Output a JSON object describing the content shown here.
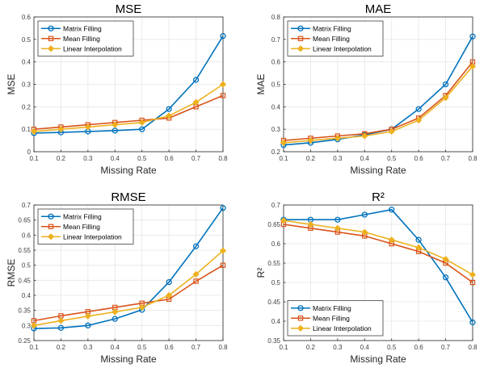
{
  "chart_data": [
    {
      "type": "line",
      "title": "MSE",
      "xlabel": "Missing Rate",
      "ylabel": "MSE",
      "x": [
        0.1,
        0.2,
        0.3,
        0.4,
        0.5,
        0.6,
        0.7,
        0.8
      ],
      "xlim": [
        0.1,
        0.8
      ],
      "ylim": [
        0,
        0.6
      ],
      "xticks": [
        "0.1",
        "0.2",
        "0.3",
        "0.4",
        "0.5",
        "0.6",
        "0.7",
        "0.8"
      ],
      "yticks": [
        "0",
        "0.1",
        "0.2",
        "0.3",
        "0.4",
        "0.5",
        "0.6"
      ],
      "ytick_values": [
        0,
        0.1,
        0.2,
        0.3,
        0.4,
        0.5,
        0.6
      ],
      "grid": true,
      "legend": "top-left",
      "series": [
        {
          "name": "Matrix Filling",
          "color": "#0072BD",
          "marker": "circle",
          "values": [
            0.083,
            0.086,
            0.09,
            0.094,
            0.1,
            0.19,
            0.32,
            0.515
          ]
        },
        {
          "name": "Mean Filling",
          "color": "#D95319",
          "marker": "square",
          "values": [
            0.1,
            0.11,
            0.12,
            0.13,
            0.14,
            0.15,
            0.2,
            0.25
          ]
        },
        {
          "name": "Linear Interpolation",
          "color": "#EDB120",
          "marker": "diamond",
          "values": [
            0.09,
            0.1,
            0.11,
            0.12,
            0.13,
            0.16,
            0.22,
            0.3
          ]
        }
      ]
    },
    {
      "type": "line",
      "title": "MAE",
      "xlabel": "Missing Rate",
      "ylabel": "MAE",
      "x": [
        0.1,
        0.2,
        0.3,
        0.4,
        0.5,
        0.6,
        0.7,
        0.8
      ],
      "xlim": [
        0.1,
        0.8
      ],
      "ylim": [
        0.2,
        0.8
      ],
      "xticks": [
        "0.1",
        "0.2",
        "0.3",
        "0.4",
        "0.5",
        "0.6",
        "0.7",
        "0.8"
      ],
      "yticks": [
        "0.2",
        "0.3",
        "0.4",
        "0.5",
        "0.6",
        "0.7",
        "0.8"
      ],
      "ytick_values": [
        0.2,
        0.3,
        0.4,
        0.5,
        0.6,
        0.7,
        0.8
      ],
      "grid": true,
      "legend": "top-left",
      "series": [
        {
          "name": "Matrix Filling",
          "color": "#0072BD",
          "marker": "circle",
          "values": [
            0.23,
            0.24,
            0.255,
            0.275,
            0.3,
            0.39,
            0.5,
            0.713
          ]
        },
        {
          "name": "Mean Filling",
          "color": "#D95319",
          "marker": "square",
          "values": [
            0.25,
            0.26,
            0.27,
            0.28,
            0.3,
            0.35,
            0.45,
            0.6
          ]
        },
        {
          "name": "Linear Interpolation",
          "color": "#EDB120",
          "marker": "diamond",
          "values": [
            0.24,
            0.25,
            0.26,
            0.27,
            0.29,
            0.34,
            0.44,
            0.58
          ]
        }
      ]
    },
    {
      "type": "line",
      "title": "RMSE",
      "xlabel": "Missing Rate",
      "ylabel": "RMSE",
      "x": [
        0.1,
        0.2,
        0.3,
        0.4,
        0.5,
        0.6,
        0.7,
        0.8
      ],
      "xlim": [
        0.1,
        0.8
      ],
      "ylim": [
        0.25,
        0.7
      ],
      "xticks": [
        "0.1",
        "0.2",
        "0.3",
        "0.4",
        "0.5",
        "0.6",
        "0.7",
        "0.8"
      ],
      "yticks": [
        "0.25",
        "0.3",
        "0.35",
        "0.4",
        "0.45",
        "0.5",
        "0.55",
        "0.6",
        "0.65",
        "0.7"
      ],
      "ytick_values": [
        0.25,
        0.3,
        0.35,
        0.4,
        0.45,
        0.5,
        0.55,
        0.6,
        0.65,
        0.7
      ],
      "grid": true,
      "legend": "top-left",
      "series": [
        {
          "name": "Matrix Filling",
          "color": "#0072BD",
          "marker": "circle",
          "values": [
            0.29,
            0.292,
            0.3,
            0.322,
            0.352,
            0.444,
            0.563,
            0.69
          ]
        },
        {
          "name": "Mean Filling",
          "color": "#D95319",
          "marker": "square",
          "values": [
            0.316,
            0.332,
            0.346,
            0.36,
            0.374,
            0.387,
            0.447,
            0.5
          ]
        },
        {
          "name": "Linear Interpolation",
          "color": "#EDB120",
          "marker": "diamond",
          "values": [
            0.3,
            0.316,
            0.331,
            0.345,
            0.36,
            0.4,
            0.47,
            0.548
          ]
        }
      ]
    },
    {
      "type": "line",
      "title": "R²",
      "xlabel": "Missing Rate",
      "ylabel": "R²",
      "x": [
        0.1,
        0.2,
        0.3,
        0.4,
        0.5,
        0.6,
        0.7,
        0.8
      ],
      "xlim": [
        0.1,
        0.8
      ],
      "ylim": [
        0.35,
        0.7
      ],
      "xticks": [
        "0.1",
        "0.2",
        "0.3",
        "0.4",
        "0.5",
        "0.6",
        "0.7",
        "0.8"
      ],
      "yticks": [
        "0.35",
        "0.4",
        "0.45",
        "0.5",
        "0.55",
        "0.6",
        "0.65",
        "0.7"
      ],
      "ytick_values": [
        0.35,
        0.4,
        0.45,
        0.5,
        0.55,
        0.6,
        0.65,
        0.7
      ],
      "grid": true,
      "legend": "bottom-left",
      "series": [
        {
          "name": "Matrix Filling",
          "color": "#0072BD",
          "marker": "circle",
          "values": [
            0.662,
            0.662,
            0.662,
            0.675,
            0.688,
            0.61,
            0.513,
            0.397
          ]
        },
        {
          "name": "Mean Filling",
          "color": "#D95319",
          "marker": "square",
          "values": [
            0.65,
            0.64,
            0.63,
            0.62,
            0.6,
            0.58,
            0.55,
            0.5
          ]
        },
        {
          "name": "Linear Interpolation",
          "color": "#EDB120",
          "marker": "diamond",
          "values": [
            0.66,
            0.65,
            0.64,
            0.63,
            0.61,
            0.59,
            0.56,
            0.52
          ]
        }
      ]
    }
  ]
}
